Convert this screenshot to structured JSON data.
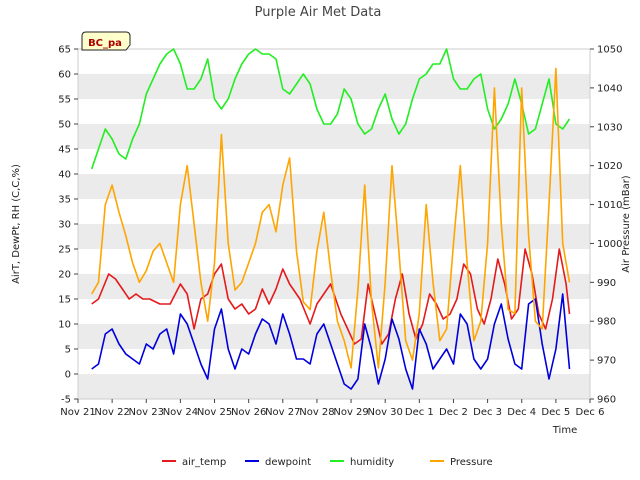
{
  "chart_data": {
    "type": "line",
    "title": "Purple Air Met Data",
    "badge": "BC_pa",
    "xlabel": "Time",
    "ylabel_left": "AirT, DewPt, RH (C,C,%)",
    "ylabel_right": "Air Pressure (mBar)",
    "x_range": [
      0,
      15
    ],
    "x_ticks": [
      "Nov 21",
      "Nov 22",
      "Nov 23",
      "Nov 24",
      "Nov 25",
      "Nov 26",
      "Nov 27",
      "Nov 28",
      "Nov 29",
      "Nov 30",
      "Dec 1",
      "Dec 2",
      "Dec 3",
      "Dec 4",
      "Dec 5",
      "Dec 6"
    ],
    "ylim_left": [
      -5,
      65
    ],
    "y_ticks_left": [
      -5,
      0,
      5,
      10,
      15,
      20,
      25,
      30,
      35,
      40,
      45,
      50,
      55,
      60,
      65
    ],
    "ylim_right": [
      960,
      1050
    ],
    "y_ticks_right": [
      960,
      970,
      980,
      990,
      1000,
      1010,
      1020,
      1030,
      1040,
      1050
    ],
    "grid": "horizontal bands",
    "legend_position": "bottom",
    "colors": {
      "air_temp": "#e41a1c",
      "dewpoint": "#0000dd",
      "humidity": "#22ee22",
      "Pressure": "#ffa500",
      "band": "#ebebeb",
      "badge_bg": "#ffffcc"
    },
    "series": [
      {
        "name": "air_temp",
        "axis": "left",
        "color": "#e41a1c",
        "x": [
          0.4,
          0.6,
          0.9,
          1.1,
          1.3,
          1.5,
          1.7,
          1.9,
          2.1,
          2.4,
          2.7,
          3.0,
          3.2,
          3.4,
          3.6,
          3.8,
          4.0,
          4.2,
          4.4,
          4.6,
          4.8,
          5.0,
          5.2,
          5.4,
          5.6,
          5.8,
          6.0,
          6.2,
          6.5,
          6.8,
          7.0,
          7.2,
          7.4,
          7.7,
          7.9,
          8.1,
          8.3,
          8.5,
          8.7,
          8.9,
          9.1,
          9.3,
          9.5,
          9.7,
          9.9,
          10.1,
          10.3,
          10.5,
          10.7,
          10.9,
          11.1,
          11.3,
          11.5,
          11.7,
          11.9,
          12.1,
          12.3,
          12.5,
          12.7,
          12.9,
          13.1,
          13.3,
          13.5,
          13.7,
          13.9,
          14.1,
          14.3,
          14.4
        ],
        "y": [
          14,
          15,
          20,
          19,
          17,
          15,
          16,
          15,
          15,
          14,
          14,
          18,
          16,
          9,
          15,
          16,
          20,
          22,
          15,
          13,
          14,
          12,
          13,
          17,
          14,
          17,
          21,
          18,
          15,
          10,
          14,
          16,
          18,
          12,
          9,
          6,
          7,
          18,
          12,
          6,
          8,
          15,
          20,
          12,
          7,
          10,
          16,
          14,
          11,
          12,
          15,
          22,
          20,
          13,
          10,
          15,
          23,
          18,
          11,
          13,
          25,
          20,
          12,
          9,
          15,
          25,
          18,
          12
        ]
      },
      {
        "name": "dewpoint",
        "axis": "left",
        "color": "#0000dd",
        "x": [
          0.4,
          0.6,
          0.8,
          1.0,
          1.2,
          1.4,
          1.6,
          1.8,
          2.0,
          2.2,
          2.4,
          2.6,
          2.8,
          3.0,
          3.2,
          3.4,
          3.6,
          3.8,
          4.0,
          4.2,
          4.4,
          4.6,
          4.8,
          5.0,
          5.2,
          5.4,
          5.6,
          5.8,
          6.0,
          6.2,
          6.4,
          6.6,
          6.8,
          7.0,
          7.2,
          7.4,
          7.6,
          7.8,
          8.0,
          8.2,
          8.4,
          8.6,
          8.8,
          9.0,
          9.2,
          9.4,
          9.6,
          9.8,
          10.0,
          10.2,
          10.4,
          10.6,
          10.8,
          11.0,
          11.2,
          11.4,
          11.6,
          11.8,
          12.0,
          12.2,
          12.4,
          12.6,
          12.8,
          13.0,
          13.2,
          13.4,
          13.6,
          13.8,
          14.0,
          14.2,
          14.4
        ],
        "y": [
          1,
          2,
          8,
          9,
          6,
          4,
          3,
          2,
          6,
          5,
          8,
          9,
          4,
          12,
          10,
          6,
          2,
          -1,
          9,
          13,
          5,
          1,
          5,
          4,
          8,
          11,
          10,
          6,
          12,
          8,
          3,
          3,
          2,
          8,
          10,
          6,
          2,
          -2,
          -3,
          -1,
          10,
          5,
          -2,
          3,
          11,
          7,
          1,
          -3,
          9,
          6,
          1,
          3,
          5,
          2,
          12,
          10,
          3,
          1,
          3,
          10,
          14,
          7,
          2,
          1,
          14,
          15,
          6,
          -1,
          5,
          16,
          1
        ]
      },
      {
        "name": "humidity",
        "axis": "left",
        "color": "#22ee22",
        "x": [
          0.4,
          0.6,
          0.8,
          1.0,
          1.2,
          1.4,
          1.6,
          1.8,
          2.0,
          2.2,
          2.4,
          2.6,
          2.8,
          3.0,
          3.2,
          3.4,
          3.6,
          3.8,
          4.0,
          4.2,
          4.4,
          4.6,
          4.8,
          5.0,
          5.2,
          5.4,
          5.6,
          5.8,
          6.0,
          6.2,
          6.4,
          6.6,
          6.8,
          7.0,
          7.2,
          7.4,
          7.6,
          7.8,
          8.0,
          8.2,
          8.4,
          8.6,
          8.8,
          9.0,
          9.2,
          9.4,
          9.6,
          9.8,
          10.0,
          10.2,
          10.4,
          10.6,
          10.8,
          11.0,
          11.2,
          11.4,
          11.6,
          11.8,
          12.0,
          12.2,
          12.4,
          12.6,
          12.8,
          13.0,
          13.2,
          13.4,
          13.6,
          13.8,
          14.0,
          14.2,
          14.4
        ],
        "y": [
          41,
          45,
          49,
          47,
          44,
          43,
          47,
          50,
          56,
          59,
          62,
          64,
          65,
          62,
          57,
          57,
          59,
          63,
          55,
          53,
          55,
          59,
          62,
          64,
          65,
          64,
          64,
          63,
          57,
          56,
          58,
          60,
          58,
          53,
          50,
          50,
          52,
          57,
          55,
          50,
          48,
          49,
          53,
          56,
          51,
          48,
          50,
          55,
          59,
          60,
          62,
          62,
          65,
          59,
          57,
          57,
          59,
          60,
          53,
          49,
          51,
          54,
          59,
          54,
          48,
          49,
          54,
          59,
          50,
          49,
          51
        ]
      },
      {
        "name": "Pressure",
        "axis": "right",
        "color": "#ffa500",
        "x": [
          0.4,
          0.6,
          0.8,
          1.0,
          1.2,
          1.4,
          1.6,
          1.8,
          2.0,
          2.2,
          2.4,
          2.6,
          2.8,
          3.0,
          3.2,
          3.4,
          3.6,
          3.8,
          4.0,
          4.2,
          4.4,
          4.6,
          4.8,
          5.0,
          5.2,
          5.4,
          5.6,
          5.8,
          6.0,
          6.2,
          6.4,
          6.6,
          6.8,
          7.0,
          7.2,
          7.4,
          7.6,
          7.8,
          8.0,
          8.2,
          8.4,
          8.6,
          8.8,
          9.0,
          9.2,
          9.4,
          9.6,
          9.8,
          10.0,
          10.2,
          10.4,
          10.6,
          10.8,
          11.0,
          11.2,
          11.4,
          11.6,
          11.8,
          12.0,
          12.2,
          12.4,
          12.6,
          12.8,
          13.0,
          13.2,
          13.4,
          13.6,
          13.8,
          14.0,
          14.2,
          14.4
        ],
        "y": [
          987,
          990,
          1010,
          1015,
          1008,
          1002,
          995,
          990,
          993,
          998,
          1000,
          995,
          990,
          1010,
          1020,
          1005,
          990,
          980,
          995,
          1028,
          1000,
          988,
          990,
          995,
          1000,
          1008,
          1010,
          1003,
          1015,
          1022,
          998,
          985,
          983,
          998,
          1008,
          993,
          980,
          975,
          968,
          988,
          1015,
          985,
          968,
          990,
          1020,
          998,
          975,
          970,
          982,
          1010,
          990,
          975,
          978,
          1000,
          1020,
          995,
          975,
          980,
          1000,
          1040,
          1005,
          983,
          982,
          1040,
          1002,
          980,
          978,
          1010,
          1045,
          1000,
          990
        ]
      }
    ]
  }
}
